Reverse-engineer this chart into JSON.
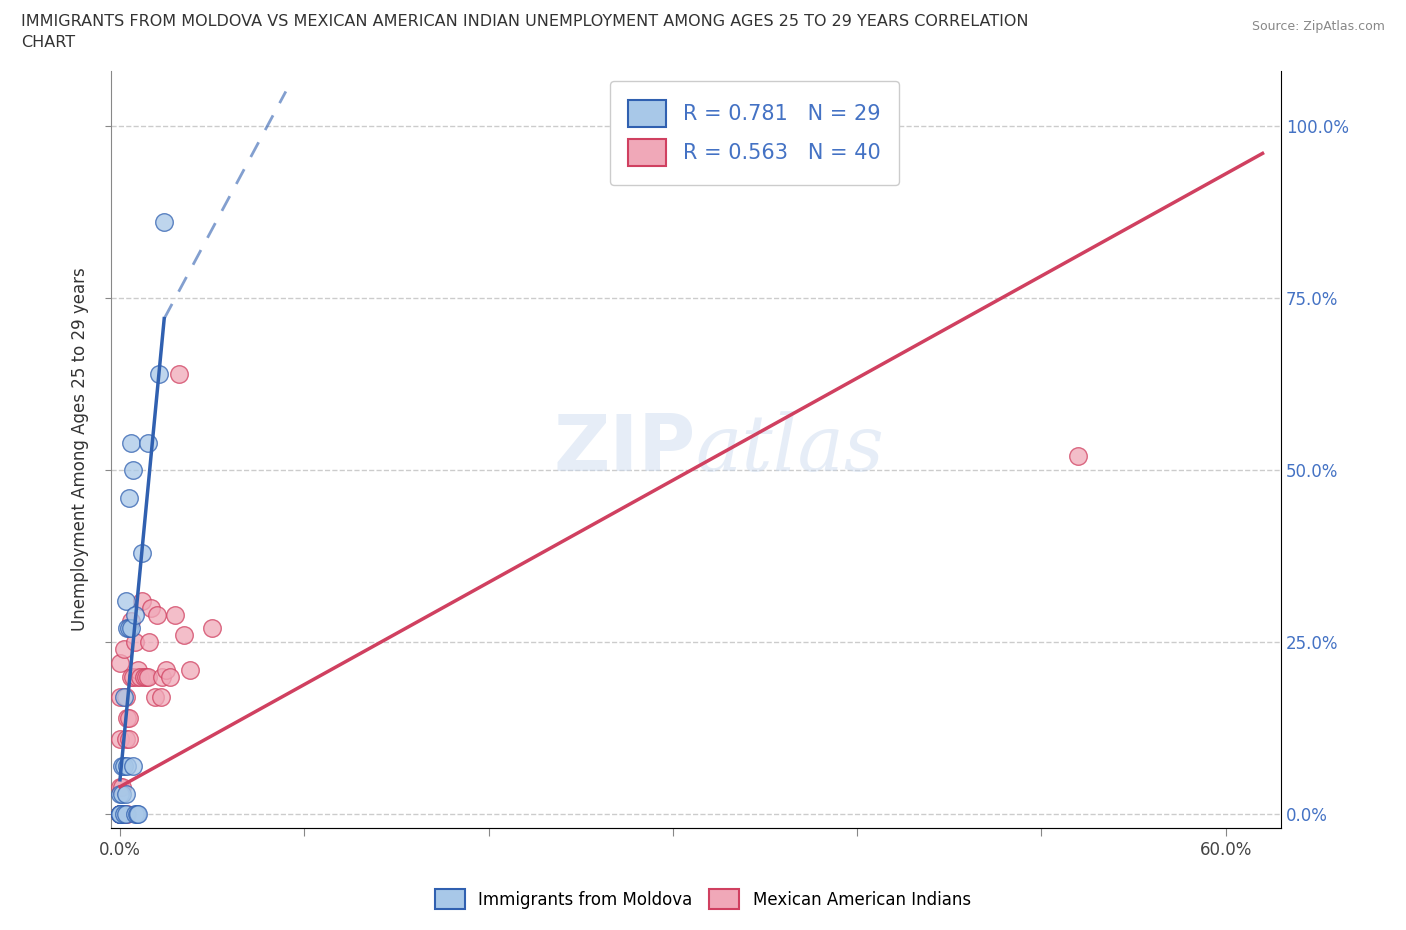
{
  "title_line1": "IMMIGRANTS FROM MOLDOVA VS MEXICAN AMERICAN INDIAN UNEMPLOYMENT AMONG AGES 25 TO 29 YEARS CORRELATION",
  "title_line2": "CHART",
  "source": "Source: ZipAtlas.com",
  "xlabel_ticks": [
    0.0,
    0.1,
    0.2,
    0.3,
    0.4,
    0.5,
    0.6
  ],
  "xlabel_labels": [
    "0.0%",
    "",
    "",
    "",
    "",
    "",
    "60.0%"
  ],
  "ylabel_ticks": [
    0.0,
    0.25,
    0.5,
    0.75,
    1.0
  ],
  "right_ylabel_labels": [
    "0.0%",
    "25.0%",
    "50.0%",
    "75.0%",
    "100.0%"
  ],
  "xlim": [
    -0.005,
    0.63
  ],
  "ylim": [
    -0.02,
    1.08
  ],
  "ylabel": "Unemployment Among Ages 25 to 29 years",
  "watermark": "ZIPatlas",
  "moldova_R": 0.781,
  "moldova_N": 29,
  "mexican_R": 0.563,
  "mexican_N": 40,
  "moldova_color": "#a8c8e8",
  "moldova_line_color": "#3060b0",
  "mexican_color": "#f0a8b8",
  "mexican_line_color": "#d04060",
  "moldova_scatter_x": [
    0.0,
    0.0,
    0.0,
    0.0,
    0.0,
    0.001,
    0.001,
    0.002,
    0.002,
    0.002,
    0.003,
    0.003,
    0.003,
    0.004,
    0.004,
    0.005,
    0.005,
    0.006,
    0.006,
    0.007,
    0.007,
    0.008,
    0.008,
    0.009,
    0.01,
    0.012,
    0.015,
    0.021,
    0.024
  ],
  "moldova_scatter_y": [
    0.0,
    0.0,
    0.0,
    0.0,
    0.03,
    0.03,
    0.07,
    0.0,
    0.07,
    0.17,
    0.03,
    0.0,
    0.31,
    0.07,
    0.27,
    0.27,
    0.46,
    0.54,
    0.27,
    0.07,
    0.5,
    0.29,
    0.0,
    0.0,
    0.0,
    0.38,
    0.54,
    0.64,
    0.86
  ],
  "mexican_scatter_x": [
    0.0,
    0.0,
    0.0,
    0.0,
    0.0,
    0.0,
    0.001,
    0.002,
    0.002,
    0.003,
    0.003,
    0.004,
    0.004,
    0.005,
    0.005,
    0.006,
    0.006,
    0.007,
    0.008,
    0.009,
    0.01,
    0.011,
    0.012,
    0.013,
    0.014,
    0.015,
    0.016,
    0.017,
    0.019,
    0.02,
    0.022,
    0.023,
    0.025,
    0.027,
    0.03,
    0.032,
    0.035,
    0.038,
    0.05,
    0.52
  ],
  "mexican_scatter_y": [
    0.0,
    0.0,
    0.04,
    0.11,
    0.17,
    0.22,
    0.04,
    0.0,
    0.24,
    0.17,
    0.11,
    0.0,
    0.14,
    0.11,
    0.14,
    0.2,
    0.28,
    0.2,
    0.25,
    0.2,
    0.21,
    0.2,
    0.31,
    0.2,
    0.2,
    0.2,
    0.25,
    0.3,
    0.17,
    0.29,
    0.17,
    0.2,
    0.21,
    0.2,
    0.29,
    0.64,
    0.26,
    0.21,
    0.27,
    0.52
  ],
  "moldova_trend_x0": 0.0,
  "moldova_trend_y0": 0.05,
  "moldova_trend_x1": 0.024,
  "moldova_trend_y1": 0.72,
  "moldova_trend_dashed_x0": 0.024,
  "moldova_trend_dashed_y0": 0.72,
  "moldova_trend_dashed_x1": 0.09,
  "moldova_trend_dashed_y1": 1.05,
  "mexican_trend_x0": 0.0,
  "mexican_trend_y0": 0.04,
  "mexican_trend_x1": 0.62,
  "mexican_trend_y1": 0.96,
  "background_color": "#ffffff",
  "grid_color": "#cccccc"
}
